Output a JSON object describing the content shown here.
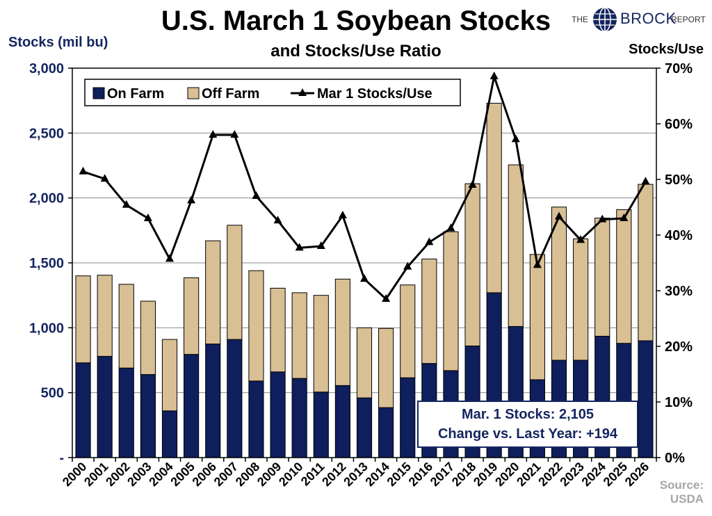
{
  "title": "U.S. March 1 Soybean Stocks",
  "subtitle": "and Stocks/Use Ratio",
  "logo": {
    "pre": "THE",
    "brand": "BROCK",
    "post": "REPORT"
  },
  "source_lines": [
    "Source:",
    "USDA"
  ],
  "callout": {
    "line1": "Mar. 1 Stocks: 2,105",
    "line2": "Change vs. Last Year: +194"
  },
  "colors": {
    "on_farm": "#0f1e5c",
    "off_farm": "#d8bf94",
    "line": "#000000",
    "axis_text": "#14255f"
  },
  "chart_data": {
    "type": "bar",
    "stacked": true,
    "title": "U.S. March 1 Soybean Stocks",
    "subtitle": "and Stocks/Use Ratio",
    "ylabel": "Stocks (mil bu)",
    "y2label": "Stocks/Use",
    "ylim": [
      0,
      3000
    ],
    "y2lim": [
      0,
      70
    ],
    "yticks": [
      "-",
      "500",
      "1,000",
      "1,500",
      "2,000",
      "2,500",
      "3,000"
    ],
    "yticks_values": [
      0,
      500,
      1000,
      1500,
      2000,
      2500,
      3000
    ],
    "y2ticks": [
      "0%",
      "10%",
      "20%",
      "30%",
      "40%",
      "50%",
      "60%",
      "70%"
    ],
    "y2ticks_values": [
      0,
      10,
      20,
      30,
      40,
      50,
      60,
      70
    ],
    "legend": [
      "On Farm",
      "Off Farm",
      "Mar 1 Stocks/Use"
    ],
    "legend_position": "top-left",
    "categories": [
      "2000",
      "2001",
      "2002",
      "2003",
      "2004",
      "2005",
      "2006",
      "2007",
      "2008",
      "2009",
      "2010",
      "2011",
      "2012",
      "2013",
      "2014",
      "2015",
      "2016",
      "2017",
      "2018",
      "2019",
      "2020",
      "2021",
      "2022",
      "2023",
      "2024",
      "2025",
      "2026"
    ],
    "series": [
      {
        "name": "On Farm",
        "axis": "left",
        "kind": "bar",
        "values": [
          730,
          780,
          690,
          640,
          360,
          795,
          875,
          910,
          590,
          660,
          610,
          505,
          555,
          460,
          385,
          615,
          725,
          670,
          860,
          1270,
          1010,
          600,
          750,
          750,
          935,
          880,
          900
        ]
      },
      {
        "name": "Off Farm",
        "axis": "left",
        "kind": "bar",
        "values": [
          670,
          625,
          645,
          565,
          550,
          590,
          795,
          880,
          850,
          645,
          660,
          745,
          820,
          540,
          610,
          715,
          805,
          1070,
          1250,
          1460,
          1245,
          965,
          1180,
          935,
          910,
          1030,
          1205
        ]
      },
      {
        "name": "Mar 1 Stocks/Use",
        "axis": "right",
        "kind": "line",
        "values": [
          51.4,
          50.1,
          45.4,
          43.0,
          35.7,
          46.2,
          58.0,
          58.0,
          47.0,
          42.6,
          37.7,
          38.0,
          43.5,
          32.1,
          28.5,
          34.3,
          38.7,
          41.2,
          49.0,
          68.5,
          57.2,
          34.6,
          43.3,
          39.1,
          42.8,
          43.0,
          49.6
        ]
      }
    ]
  }
}
